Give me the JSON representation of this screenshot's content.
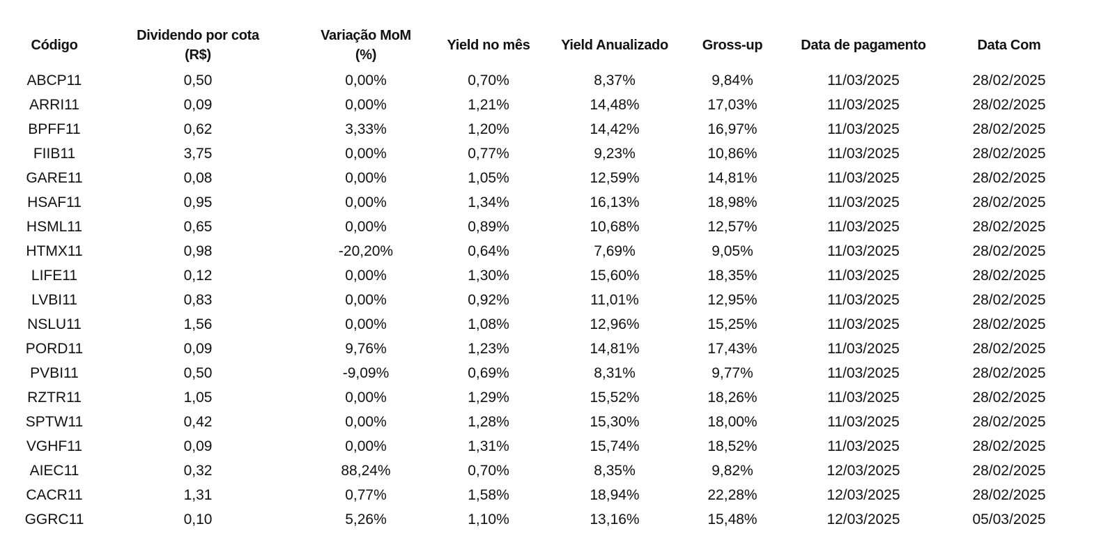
{
  "table": {
    "headers": [
      [
        "Código"
      ],
      [
        "Dividendo por cota",
        "(R$)"
      ],
      [
        "Variação MoM",
        "(%)"
      ],
      [
        "Yield no mês"
      ],
      [
        "Yield Anualizado"
      ],
      [
        "Gross-up"
      ],
      [
        "Data de pagamento"
      ],
      [
        "Data Com"
      ]
    ],
    "rows": [
      [
        "ABCP11",
        "0,50",
        "0,00%",
        "0,70%",
        "8,37%",
        "9,84%",
        "11/03/2025",
        "28/02/2025"
      ],
      [
        "ARRI11",
        "0,09",
        "0,00%",
        "1,21%",
        "14,48%",
        "17,03%",
        "11/03/2025",
        "28/02/2025"
      ],
      [
        "BPFF11",
        "0,62",
        "3,33%",
        "1,20%",
        "14,42%",
        "16,97%",
        "11/03/2025",
        "28/02/2025"
      ],
      [
        "FIIB11",
        "3,75",
        "0,00%",
        "0,77%",
        "9,23%",
        "10,86%",
        "11/03/2025",
        "28/02/2025"
      ],
      [
        "GARE11",
        "0,08",
        "0,00%",
        "1,05%",
        "12,59%",
        "14,81%",
        "11/03/2025",
        "28/02/2025"
      ],
      [
        "HSAF11",
        "0,95",
        "0,00%",
        "1,34%",
        "16,13%",
        "18,98%",
        "11/03/2025",
        "28/02/2025"
      ],
      [
        "HSML11",
        "0,65",
        "0,00%",
        "0,89%",
        "10,68%",
        "12,57%",
        "11/03/2025",
        "28/02/2025"
      ],
      [
        "HTMX11",
        "0,98",
        "-20,20%",
        "0,64%",
        "7,69%",
        "9,05%",
        "11/03/2025",
        "28/02/2025"
      ],
      [
        "LIFE11",
        "0,12",
        "0,00%",
        "1,30%",
        "15,60%",
        "18,35%",
        "11/03/2025",
        "28/02/2025"
      ],
      [
        "LVBI11",
        "0,83",
        "0,00%",
        "0,92%",
        "11,01%",
        "12,95%",
        "11/03/2025",
        "28/02/2025"
      ],
      [
        "NSLU11",
        "1,56",
        "0,00%",
        "1,08%",
        "12,96%",
        "15,25%",
        "11/03/2025",
        "28/02/2025"
      ],
      [
        "PORD11",
        "0,09",
        "9,76%",
        "1,23%",
        "14,81%",
        "17,43%",
        "11/03/2025",
        "28/02/2025"
      ],
      [
        "PVBI11",
        "0,50",
        "-9,09%",
        "0,69%",
        "8,31%",
        "9,77%",
        "11/03/2025",
        "28/02/2025"
      ],
      [
        "RZTR11",
        "1,05",
        "0,00%",
        "1,29%",
        "15,52%",
        "18,26%",
        "11/03/2025",
        "28/02/2025"
      ],
      [
        "SPTW11",
        "0,42",
        "0,00%",
        "1,28%",
        "15,30%",
        "18,00%",
        "11/03/2025",
        "28/02/2025"
      ],
      [
        "VGHF11",
        "0,09",
        "0,00%",
        "1,31%",
        "15,74%",
        "18,52%",
        "11/03/2025",
        "28/02/2025"
      ],
      [
        "AIEC11",
        "0,32",
        "88,24%",
        "0,70%",
        "8,35%",
        "9,82%",
        "12/03/2025",
        "28/02/2025"
      ],
      [
        "CACR11",
        "1,31",
        "0,77%",
        "1,58%",
        "18,94%",
        "22,28%",
        "12/03/2025",
        "28/02/2025"
      ],
      [
        "GGRC11",
        "0,10",
        "5,26%",
        "1,10%",
        "13,16%",
        "15,48%",
        "12/03/2025",
        "05/03/2025"
      ]
    ]
  }
}
